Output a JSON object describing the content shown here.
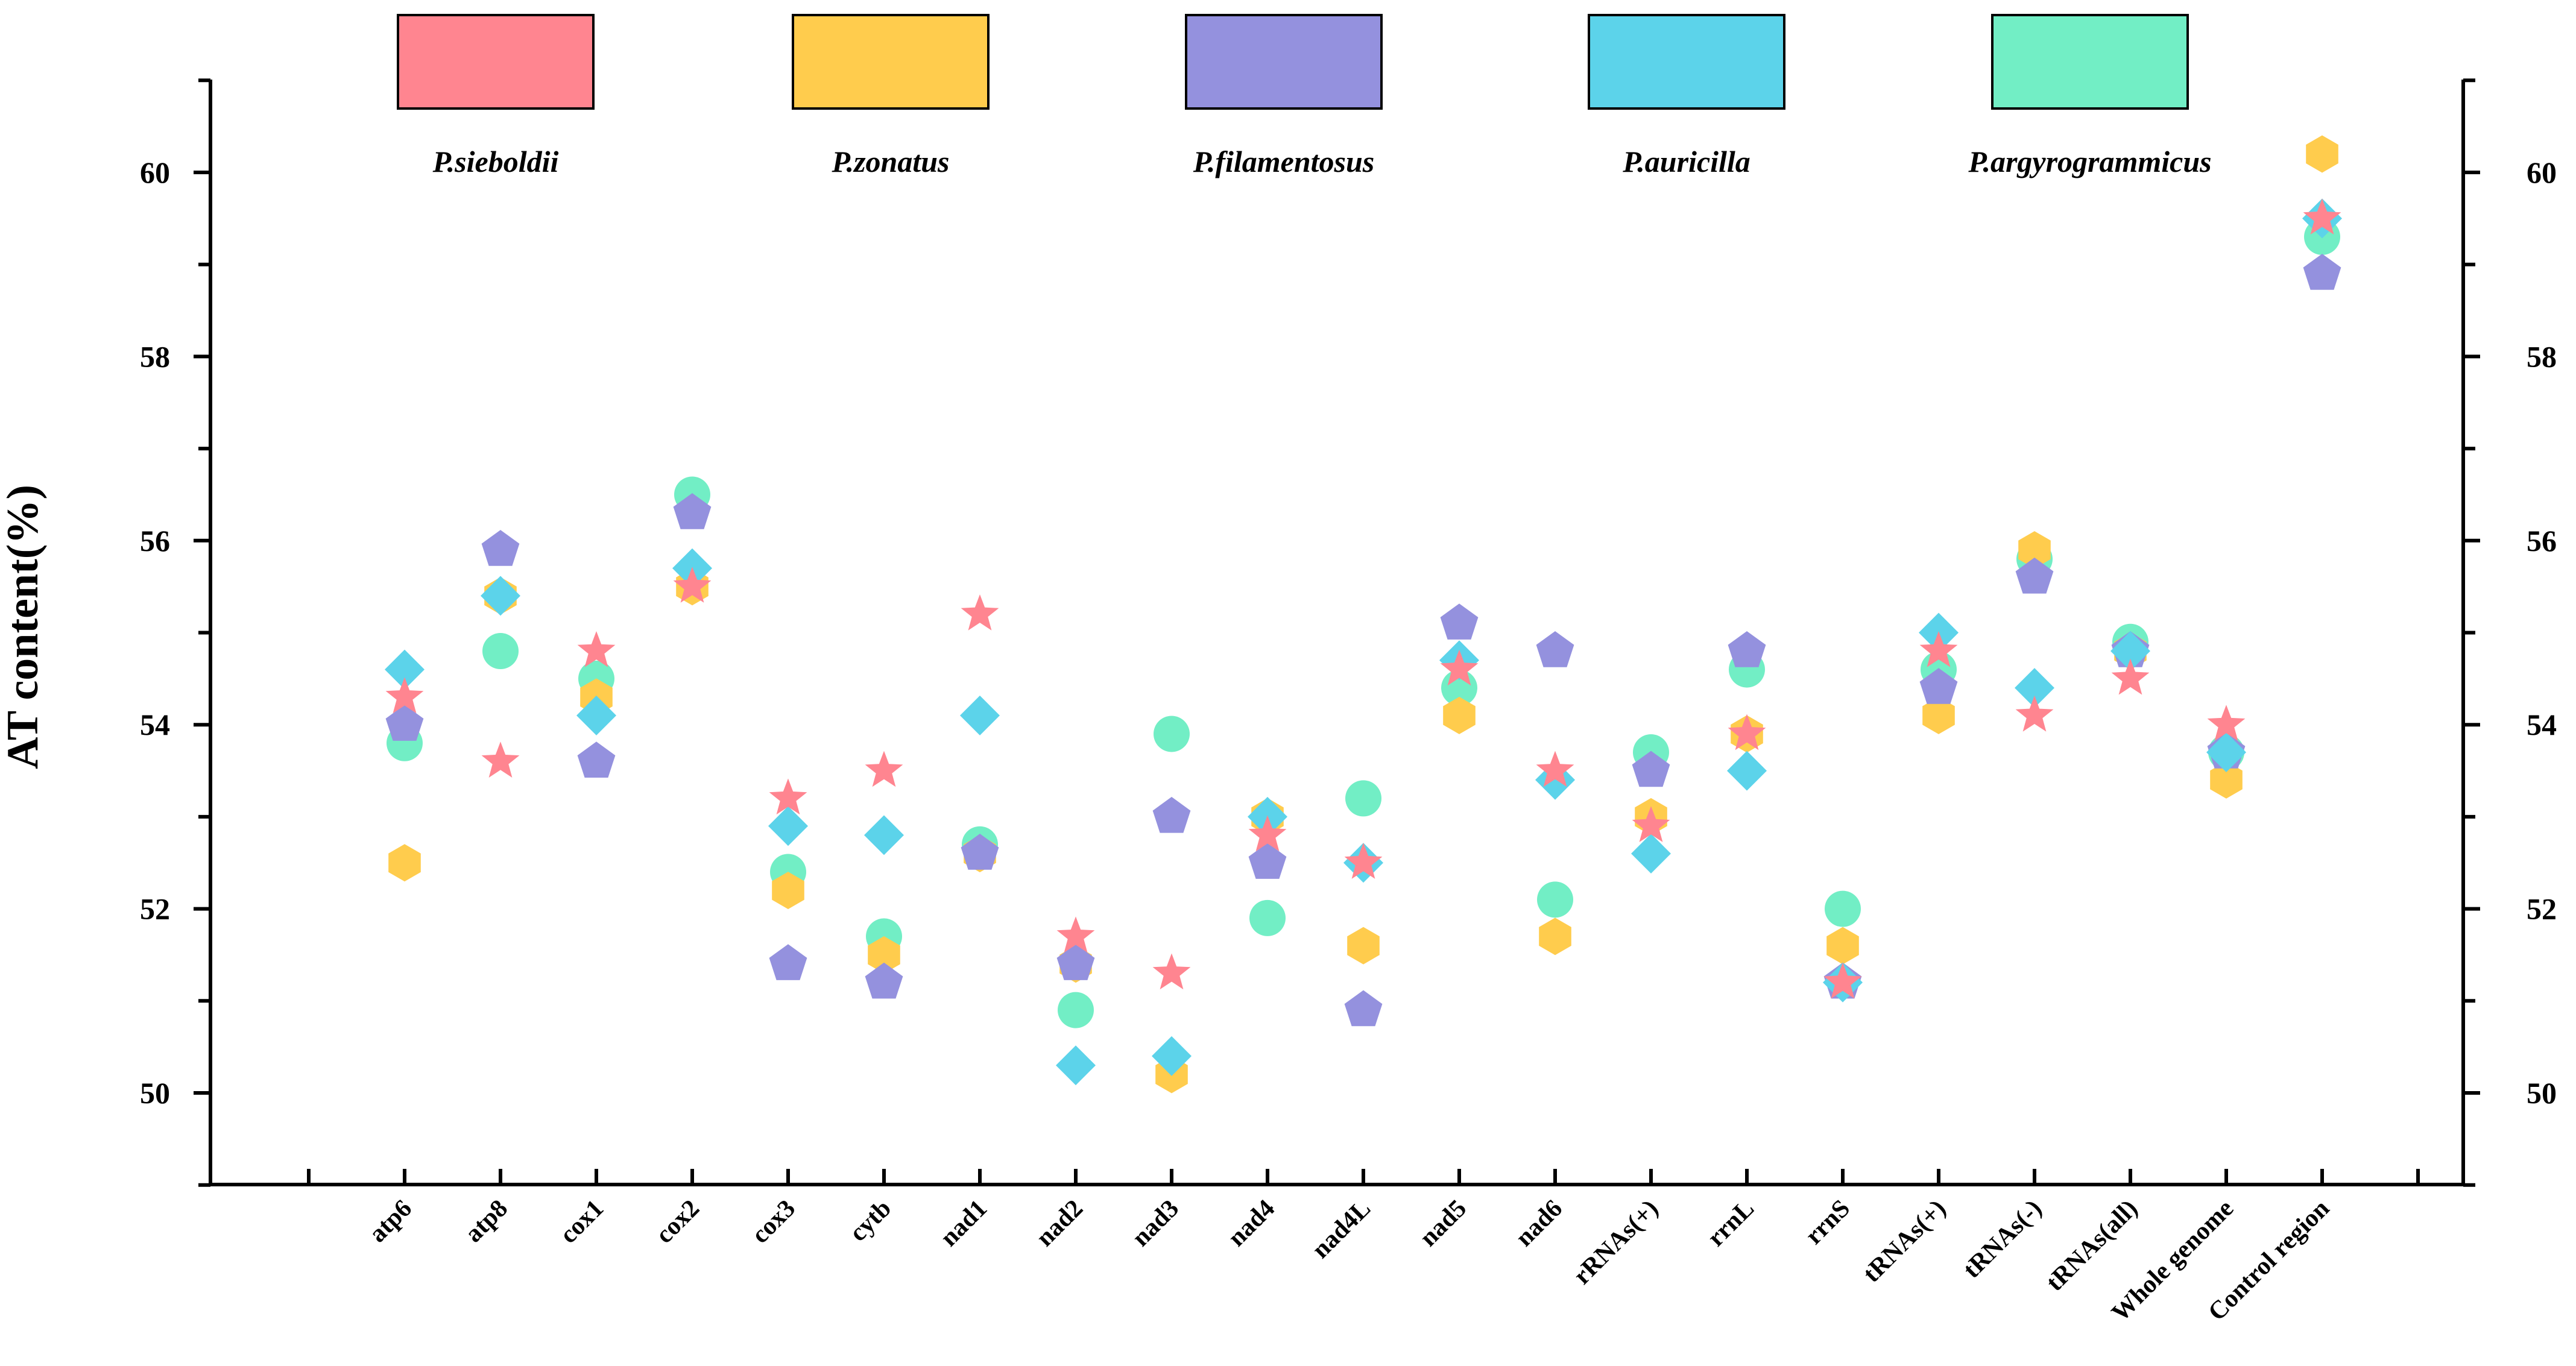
{
  "chart_data": {
    "type": "scatter",
    "title": "",
    "xlabel": "",
    "ylabel": "AT content(%)",
    "ylim": [
      49,
      61
    ],
    "yticks": [
      50,
      52,
      54,
      56,
      58,
      60
    ],
    "grid": false,
    "legend_position": "top",
    "categories": [
      "atp6",
      "atp8",
      "cox1",
      "cox2",
      "cox3",
      "cytb",
      "nad1",
      "nad2",
      "nad3",
      "nad4",
      "nad4L",
      "nad5",
      "nad6",
      "rRNAs(+)",
      "rrnL",
      "rrnS",
      "tRNAs(+)",
      "tRNAs(-)",
      "tRNAs(all)",
      "Whole genome",
      "Control region"
    ],
    "series": [
      {
        "name": "P.sieboldii",
        "marker": "star",
        "color": "#FF8590",
        "values": [
          54.3,
          53.6,
          54.8,
          55.5,
          53.2,
          53.5,
          55.2,
          51.7,
          51.3,
          52.8,
          52.5,
          54.6,
          53.5,
          52.9,
          53.9,
          51.2,
          54.8,
          54.1,
          54.5,
          54.0,
          59.5
        ]
      },
      {
        "name": "P.zonatus",
        "marker": "hexagon",
        "color": "#FFCC4D",
        "values": [
          52.5,
          55.4,
          54.3,
          55.5,
          52.2,
          51.5,
          52.6,
          51.4,
          50.2,
          53.0,
          51.6,
          54.1,
          51.7,
          53.0,
          53.9,
          51.6,
          54.1,
          55.9,
          54.8,
          53.4,
          60.2
        ]
      },
      {
        "name": "P.filamentosus",
        "marker": "pentagon",
        "color": "#9491DE",
        "values": [
          54.0,
          55.9,
          53.6,
          56.3,
          51.4,
          51.2,
          52.6,
          51.4,
          53.0,
          52.5,
          50.9,
          55.1,
          54.8,
          53.5,
          54.8,
          51.2,
          54.4,
          55.6,
          54.8,
          53.7,
          58.9
        ]
      },
      {
        "name": "P.auricilla",
        "marker": "diamond",
        "color": "#5CD3EA",
        "values": [
          54.6,
          55.4,
          54.1,
          55.7,
          52.9,
          52.8,
          54.1,
          50.3,
          50.4,
          53.0,
          52.5,
          54.7,
          53.4,
          52.6,
          53.5,
          51.2,
          55.0,
          54.4,
          54.8,
          53.7,
          59.5
        ]
      },
      {
        "name": "P.argyrogrammicus",
        "marker": "circle",
        "color": "#72EEC5",
        "values": [
          53.8,
          54.8,
          54.5,
          56.5,
          52.4,
          51.7,
          52.7,
          50.9,
          53.9,
          51.9,
          53.2,
          54.4,
          52.1,
          53.7,
          54.6,
          52.0,
          54.6,
          55.8,
          54.9,
          53.7,
          59.3
        ]
      }
    ]
  }
}
